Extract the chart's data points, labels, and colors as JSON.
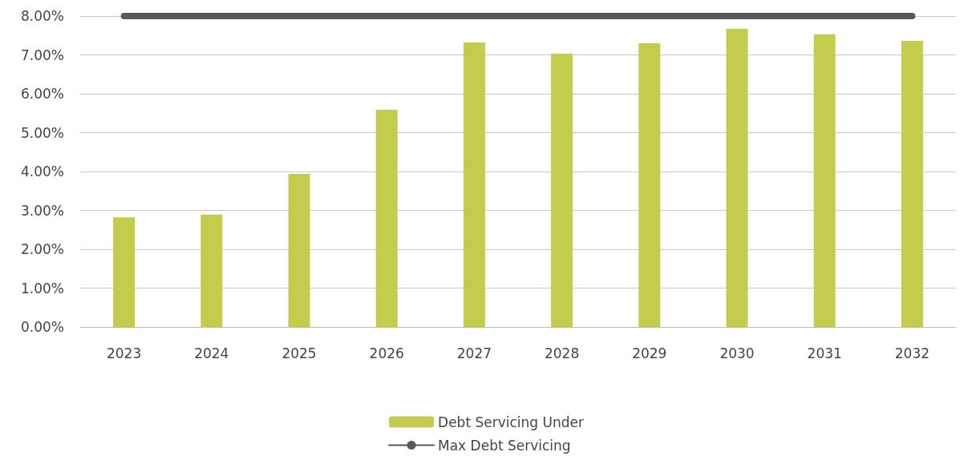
{
  "chart_data": {
    "type": "bar",
    "categories": [
      "2023",
      "2024",
      "2025",
      "2026",
      "2027",
      "2028",
      "2029",
      "2030",
      "2031",
      "2032"
    ],
    "series": [
      {
        "name": "Debt Servicing Under",
        "color": "#c3cc4c",
        "values": [
          2.82,
          2.89,
          3.94,
          5.59,
          7.32,
          7.03,
          7.3,
          7.67,
          7.53,
          7.36
        ]
      },
      {
        "name": "Max Debt Servicing",
        "type": "line",
        "color": "#58585b",
        "values": [
          8,
          8,
          8,
          8,
          8,
          8,
          8,
          8,
          8,
          8
        ]
      }
    ],
    "ylim": [
      0,
      8
    ],
    "yticks": [
      {
        "value": 0,
        "label": "0.00%"
      },
      {
        "value": 1,
        "label": "1.00%"
      },
      {
        "value": 2,
        "label": "2.00%"
      },
      {
        "value": 3,
        "label": "3.00%"
      },
      {
        "value": 4,
        "label": "4.00%"
      },
      {
        "value": 5,
        "label": "5.00%"
      },
      {
        "value": 6,
        "label": "6.00%"
      },
      {
        "value": 7,
        "label": "7.00%"
      },
      {
        "value": 8,
        "label": "8.00%"
      }
    ],
    "grid": "y",
    "legend": "bottom"
  }
}
